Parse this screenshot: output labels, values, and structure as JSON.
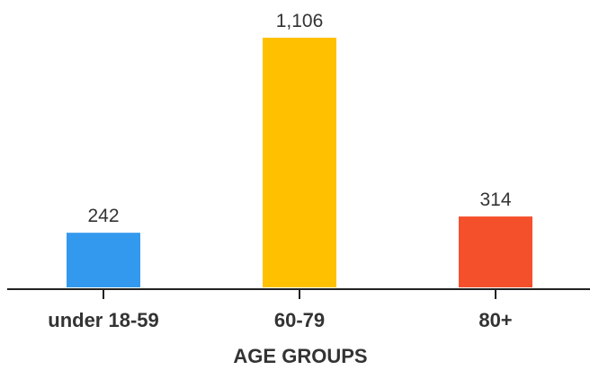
{
  "chart_data": {
    "type": "bar",
    "categories": [
      "under 18-59",
      "60-79",
      "80+"
    ],
    "values": [
      242,
      1106,
      314
    ],
    "value_labels": [
      "242",
      "1,106",
      "314"
    ],
    "colors": [
      "#3399ee",
      "#ffc000",
      "#f5502c"
    ],
    "title": "",
    "xlabel": "AGE GROUPS",
    "ylabel": "",
    "ylim": [
      0,
      1106
    ],
    "grid": false,
    "legend": "none"
  }
}
